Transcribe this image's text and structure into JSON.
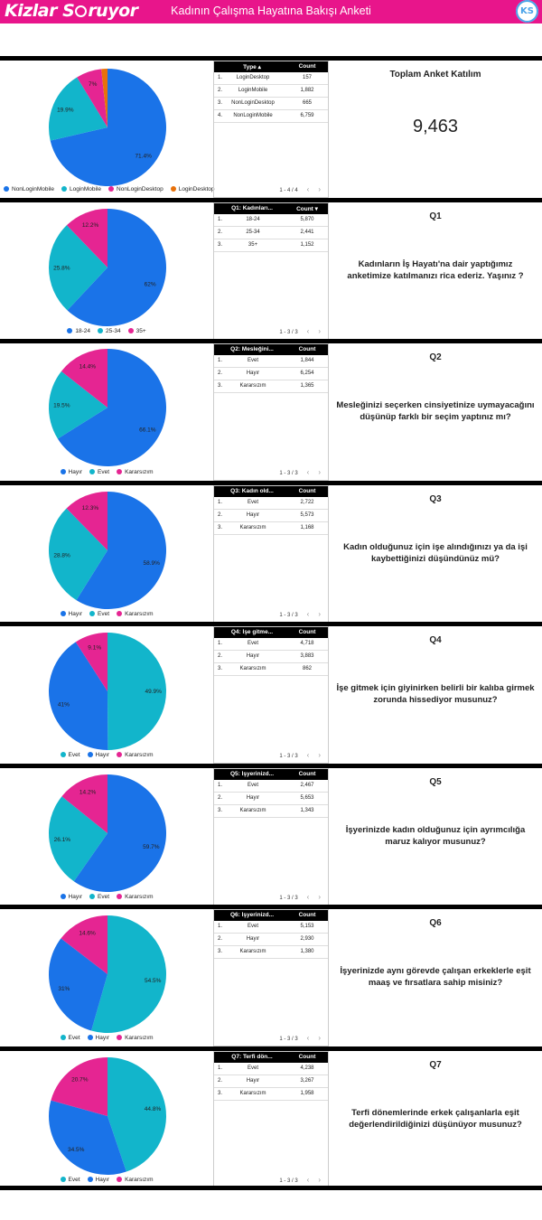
{
  "header": {
    "logo_text": "KizlarSoruyor",
    "title": "Kadının Çalışma Hayatına Bakışı Anketi",
    "badge": "KS"
  },
  "colors": {
    "brand": "#e8158b",
    "blue": "#1a73e8",
    "teal": "#12b5cb",
    "pink": "#e52592",
    "orange": "#e8710a"
  },
  "summary": {
    "title": "Toplam Anket Katılım",
    "value": "9,463"
  },
  "sections": [
    {
      "table": {
        "col1": "Type ▴",
        "col2": "Count",
        "rows": [
          {
            "idx": "1.",
            "label": "LoginDesktop",
            "count": "157"
          },
          {
            "idx": "2.",
            "label": "LoginMobile",
            "count": "1,882"
          },
          {
            "idx": "3.",
            "label": "NonLoginDesktop",
            "count": "665"
          },
          {
            "idx": "4.",
            "label": "NonLoginMobile",
            "count": "6,759"
          }
        ],
        "pager": "1 - 4 / 4"
      },
      "legend": [
        {
          "name": "NonLoginMobile",
          "color": "#1a73e8"
        },
        {
          "name": "LoginMobile",
          "color": "#12b5cb"
        },
        {
          "name": "NonLoginDesktop",
          "color": "#e52592"
        },
        {
          "name": "LoginDesktop",
          "color": "#e8710a"
        }
      ]
    },
    {
      "question": {
        "label": "Q1",
        "text": "Kadınların İş Hayatı'na dair yaptığımız anketimize katılmanızı rica ederiz. Yaşınız ?"
      },
      "table": {
        "col1": "Q1: Kadınları...",
        "col2": "Count ▾",
        "rows": [
          {
            "idx": "1.",
            "label": "18-24",
            "count": "5,870"
          },
          {
            "idx": "2.",
            "label": "25-34",
            "count": "2,441"
          },
          {
            "idx": "3.",
            "label": "35+",
            "count": "1,152"
          }
        ],
        "pager": "1 - 3 / 3"
      },
      "legend": [
        {
          "name": "18-24",
          "color": "#1a73e8"
        },
        {
          "name": "25-34",
          "color": "#12b5cb"
        },
        {
          "name": "35+",
          "color": "#e52592"
        }
      ]
    },
    {
      "question": {
        "label": "Q2",
        "text": "Mesleğinizi seçerken cinsiyetinize uymayacağını düşünüp farklı bir seçim yaptınız mı?"
      },
      "table": {
        "col1": "Q2: Mesleğini...",
        "col2": "Count",
        "rows": [
          {
            "idx": "1.",
            "label": "Evet",
            "count": "1,844"
          },
          {
            "idx": "2.",
            "label": "Hayır",
            "count": "6,254"
          },
          {
            "idx": "3.",
            "label": "Kararsızım",
            "count": "1,365"
          }
        ],
        "pager": "1 - 3 / 3"
      },
      "legend": [
        {
          "name": "Hayır",
          "color": "#1a73e8"
        },
        {
          "name": "Evet",
          "color": "#12b5cb"
        },
        {
          "name": "Kararsızım",
          "color": "#e52592"
        }
      ]
    },
    {
      "question": {
        "label": "Q3",
        "text": "Kadın olduğunuz için işe alındığınızı ya da işi kaybettiğinizi düşündünüz mü?"
      },
      "table": {
        "col1": "Q3: Kadın old...",
        "col2": "Count",
        "rows": [
          {
            "idx": "1.",
            "label": "Evet",
            "count": "2,722"
          },
          {
            "idx": "2.",
            "label": "Hayır",
            "count": "5,573"
          },
          {
            "idx": "3.",
            "label": "Kararsızım",
            "count": "1,168"
          }
        ],
        "pager": "1 - 3 / 3"
      },
      "legend": [
        {
          "name": "Hayır",
          "color": "#1a73e8"
        },
        {
          "name": "Evet",
          "color": "#12b5cb"
        },
        {
          "name": "Kararsızım",
          "color": "#e52592"
        }
      ]
    },
    {
      "question": {
        "label": "Q4",
        "text": "İşe gitmek için giyinirken belirli bir kalıba girmek zorunda hissediyor musunuz?"
      },
      "table": {
        "col1": "Q4: İşe gitme...",
        "col2": "Count",
        "rows": [
          {
            "idx": "1.",
            "label": "Evet",
            "count": "4,718"
          },
          {
            "idx": "2.",
            "label": "Hayır",
            "count": "3,883"
          },
          {
            "idx": "3.",
            "label": "Kararsızım",
            "count": "862"
          }
        ],
        "pager": "1 - 3 / 3"
      },
      "legend": [
        {
          "name": "Evet",
          "color": "#12b5cb"
        },
        {
          "name": "Hayır",
          "color": "#1a73e8"
        },
        {
          "name": "Kararsızım",
          "color": "#e52592"
        }
      ]
    },
    {
      "question": {
        "label": "Q5",
        "text": "İşyerinizde kadın olduğunuz için ayrımcılığa maruz kalıyor musunuz?"
      },
      "table": {
        "col1": "Q5: İşyerinizd...",
        "col2": "Count",
        "rows": [
          {
            "idx": "1.",
            "label": "Evet",
            "count": "2,467"
          },
          {
            "idx": "2.",
            "label": "Hayır",
            "count": "5,653"
          },
          {
            "idx": "3.",
            "label": "Kararsızım",
            "count": "1,343"
          }
        ],
        "pager": "1 - 3 / 3"
      },
      "legend": [
        {
          "name": "Hayır",
          "color": "#1a73e8"
        },
        {
          "name": "Evet",
          "color": "#12b5cb"
        },
        {
          "name": "Kararsızım",
          "color": "#e52592"
        }
      ]
    },
    {
      "question": {
        "label": "Q6",
        "text": "İşyerinizde aynı görevde çalışan erkeklerle eşit maaş ve fırsatlara sahip misiniz?"
      },
      "table": {
        "col1": "Q6: İşyerinizd...",
        "col2": "Count",
        "rows": [
          {
            "idx": "1.",
            "label": "Evet",
            "count": "5,153"
          },
          {
            "idx": "2.",
            "label": "Hayır",
            "count": "2,930"
          },
          {
            "idx": "3.",
            "label": "Kararsızım",
            "count": "1,380"
          }
        ],
        "pager": "1 - 3 / 3"
      },
      "legend": [
        {
          "name": "Evet",
          "color": "#12b5cb"
        },
        {
          "name": "Hayır",
          "color": "#1a73e8"
        },
        {
          "name": "Kararsızım",
          "color": "#e52592"
        }
      ]
    },
    {
      "question": {
        "label": "Q7",
        "text": "Terfi dönemlerinde erkek çalışanlarla eşit değerlendirildiğinizi düşünüyor musunuz?"
      },
      "table": {
        "col1": "Q7: Terfi dön...",
        "col2": "Count",
        "rows": [
          {
            "idx": "1.",
            "label": "Evet",
            "count": "4,238"
          },
          {
            "idx": "2.",
            "label": "Hayır",
            "count": "3,267"
          },
          {
            "idx": "3.",
            "label": "Kararsızım",
            "count": "1,958"
          }
        ],
        "pager": "1 - 3 / 3"
      },
      "legend": [
        {
          "name": "Evet",
          "color": "#12b5cb"
        },
        {
          "name": "Hayır",
          "color": "#1a73e8"
        },
        {
          "name": "Kararsızım",
          "color": "#e52592"
        }
      ]
    }
  ],
  "chart_data": [
    {
      "type": "pie",
      "categories": [
        "NonLoginMobile",
        "LoginMobile",
        "NonLoginDesktop",
        "LoginDesktop"
      ],
      "values": [
        71.4,
        19.9,
        7,
        1.7
      ],
      "labels": [
        "71.4%",
        "19.9%",
        "7%",
        ""
      ],
      "colors": [
        "#1a73e8",
        "#12b5cb",
        "#e52592",
        "#e8710a"
      ]
    },
    {
      "type": "pie",
      "categories": [
        "18-24",
        "25-34",
        "35+"
      ],
      "values": [
        62,
        25.8,
        12.2
      ],
      "labels": [
        "62%",
        "25.8%",
        "12.2%"
      ],
      "colors": [
        "#1a73e8",
        "#12b5cb",
        "#e52592"
      ]
    },
    {
      "type": "pie",
      "categories": [
        "Hayır",
        "Evet",
        "Kararsızım"
      ],
      "values": [
        66.1,
        19.5,
        14.4
      ],
      "labels": [
        "66.1%",
        "19.5%",
        "14.4%"
      ],
      "colors": [
        "#1a73e8",
        "#12b5cb",
        "#e52592"
      ]
    },
    {
      "type": "pie",
      "categories": [
        "Hayır",
        "Evet",
        "Kararsızım"
      ],
      "values": [
        58.9,
        28.8,
        12.3
      ],
      "labels": [
        "58.9%",
        "28.8%",
        "12.3%"
      ],
      "colors": [
        "#1a73e8",
        "#12b5cb",
        "#e52592"
      ]
    },
    {
      "type": "pie",
      "categories": [
        "Evet",
        "Hayır",
        "Kararsızım"
      ],
      "values": [
        49.9,
        41,
        9.1
      ],
      "labels": [
        "49.9%",
        "41%",
        "9.1%"
      ],
      "colors": [
        "#12b5cb",
        "#1a73e8",
        "#e52592"
      ]
    },
    {
      "type": "pie",
      "categories": [
        "Hayır",
        "Evet",
        "Kararsızım"
      ],
      "values": [
        59.7,
        26.1,
        14.2
      ],
      "labels": [
        "59.7%",
        "26.1%",
        "14.2%"
      ],
      "colors": [
        "#1a73e8",
        "#12b5cb",
        "#e52592"
      ]
    },
    {
      "type": "pie",
      "categories": [
        "Evet",
        "Hayır",
        "Kararsızım"
      ],
      "values": [
        54.5,
        31,
        14.6
      ],
      "labels": [
        "54.5%",
        "31%",
        "14.6%"
      ],
      "colors": [
        "#12b5cb",
        "#1a73e8",
        "#e52592"
      ]
    },
    {
      "type": "pie",
      "categories": [
        "Evet",
        "Hayır",
        "Kararsızım"
      ],
      "values": [
        44.8,
        34.5,
        20.7
      ],
      "labels": [
        "44.8%",
        "34.5%",
        "20.7%"
      ],
      "colors": [
        "#12b5cb",
        "#1a73e8",
        "#e52592"
      ]
    }
  ]
}
